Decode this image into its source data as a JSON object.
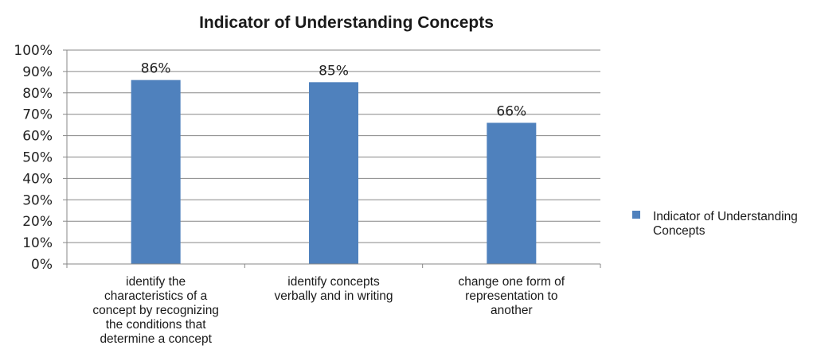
{
  "chart_data": {
    "type": "bar",
    "title": "Indicator of Understanding Concepts",
    "categories": [
      "identify the characteristics of a concept by recognizing the conditions that determine a concept",
      "identify concepts verbally and in writing",
      "change one form of representation to another"
    ],
    "category_lines": [
      [
        "identify the",
        "characteristics of a",
        "concept by recognizing",
        "the conditions that",
        "determine a concept"
      ],
      [
        "identify concepts",
        "verbally and in writing"
      ],
      [
        "change one form of",
        "representation to",
        "another"
      ]
    ],
    "series": [
      {
        "name": "Indicator of Understanding Concepts",
        "name_lines": [
          "Indicator of Understanding",
          "Concepts"
        ],
        "values": [
          86,
          85,
          66
        ],
        "labels": [
          "86%",
          "85%",
          "66%"
        ],
        "color": "#4f81bd"
      }
    ],
    "ylim": [
      0,
      100
    ],
    "y_ticks": [
      "0%",
      "10%",
      "20%",
      "30%",
      "40%",
      "50%",
      "60%",
      "70%",
      "80%",
      "90%",
      "100%"
    ],
    "grid": true,
    "legend": "right",
    "gridline_color": "#878787",
    "axis_color": "#878787"
  }
}
